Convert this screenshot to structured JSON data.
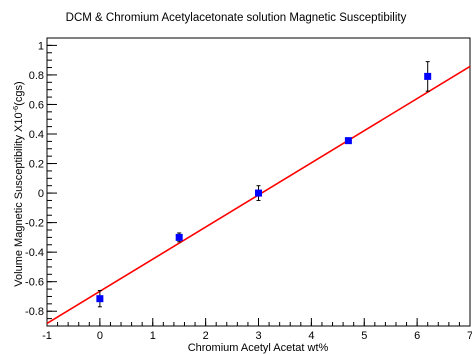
{
  "chart_data": {
    "type": "scatter",
    "title": "DCM & Chromium Acetylacetonate solution Magnetic Susceptibility",
    "xlabel": "Chromium Acetyl Acetat wt%",
    "ylabel_main": "Volume Magnetic Susceptibility X10",
    "ylabel_sup": "-6",
    "ylabel_unit": "(cgs)",
    "xlim": [
      -1,
      7
    ],
    "ylim": [
      -0.9,
      1.05
    ],
    "x_ticks": [
      -1,
      0,
      1,
      2,
      3,
      4,
      5,
      6,
      7
    ],
    "y_ticks": [
      -0.8,
      -0.6,
      -0.4,
      -0.2,
      0,
      0.2,
      0.4,
      0.6,
      0.8,
      1
    ],
    "grid": false,
    "colors": {
      "points": "#0000ff",
      "fit": "#ff0000",
      "errorbar": "#000000"
    },
    "points": [
      {
        "x": 0.0,
        "y": -0.715,
        "yerr": 0.055
      },
      {
        "x": 1.5,
        "y": -0.3,
        "yerr": 0.03
      },
      {
        "x": 3.0,
        "y": 0.0,
        "yerr": 0.05
      },
      {
        "x": 4.7,
        "y": 0.355,
        "yerr": 0.01
      },
      {
        "x": 6.2,
        "y": 0.79,
        "yerr": 0.1
      }
    ],
    "fit": {
      "slope": 0.2175,
      "intercept": -0.665
    }
  }
}
